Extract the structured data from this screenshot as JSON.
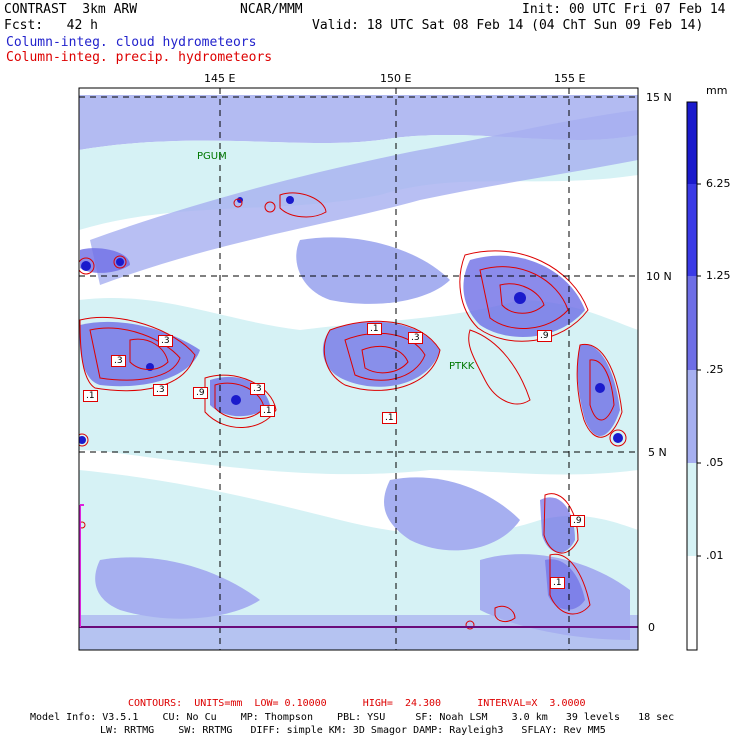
{
  "header": {
    "model": "CONTRAST  3km ARW",
    "center": "NCAR/MMM",
    "init": "Init: 00 UTC Fri 07 Feb 14",
    "fcst": "Fcst:   42 h",
    "valid": "Valid: 18 UTC Sat 08 Feb 14 (04 ChT Sun 09 Feb 14)",
    "field1": "Column-integ. cloud hydrometeors",
    "field2": "Column-integ. precip. hydrometeors"
  },
  "map": {
    "lon_labels": [
      "145 E",
      "150 E",
      "155 E"
    ],
    "lat_labels": [
      "15 N",
      "10 N",
      "5 N",
      "0"
    ],
    "stations": [
      "PGUM",
      "PTKK"
    ],
    "contour_labels": [
      ".1",
      ".3",
      ".9"
    ]
  },
  "colorbar": {
    "unit": "mm",
    "levels": [
      "6.25",
      "1.25",
      ".25",
      ".05",
      ".01"
    ],
    "colors": [
      "#1a1acc",
      "#3a3ae6",
      "#6e6ee6",
      "#a6aff0",
      "#d6f2f5",
      "#ffffff"
    ]
  },
  "footer": {
    "contours": "CONTOURS:  UNITS=mm  LOW= 0.10000      HIGH=  24.300      INTERVAL=X  3.0000",
    "model_info1": "Model Info: V3.5.1    CU: No Cu    MP: Thompson    PBL: YSU     SF: Noah LSM    3.0 km   39 levels   18 sec",
    "model_info2": "LW: RRTMG    SW: RRTMG   DIFF: simple KM: 3D Smagor DAMP: Rayleigh3   SFLAY: Rev MM5"
  }
}
